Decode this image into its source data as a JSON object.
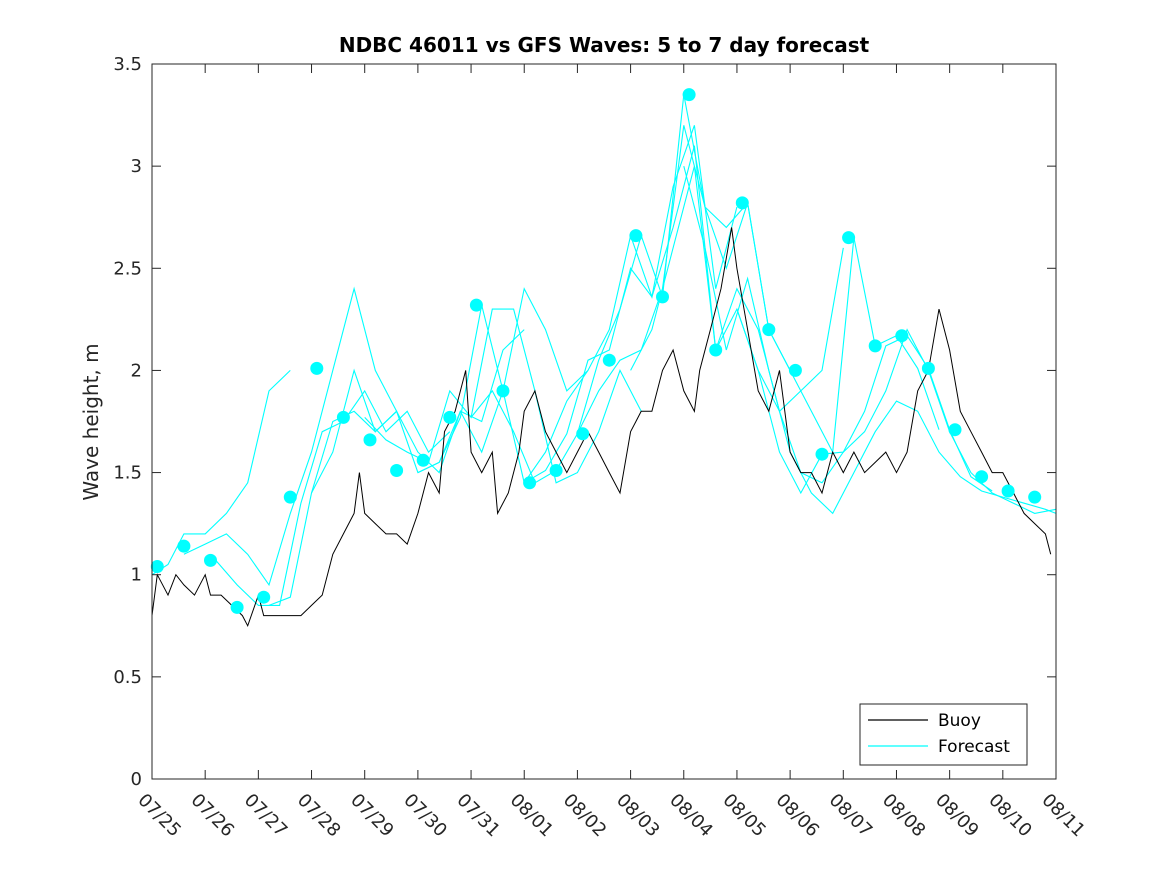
{
  "chart_data": {
    "type": "line",
    "title": "NDBC 46011 vs GFS Waves: 5 to 7 day forecast",
    "xlabel": "",
    "ylabel": "Wave height, m",
    "xlim": [
      "07/25",
      "08/11"
    ],
    "ylim": [
      0,
      3.5
    ],
    "x_ticks": [
      "07/25",
      "07/26",
      "07/27",
      "07/28",
      "07/29",
      "07/30",
      "07/31",
      "08/01",
      "08/02",
      "08/03",
      "08/04",
      "08/05",
      "08/06",
      "08/07",
      "08/08",
      "08/09",
      "08/10",
      "08/11"
    ],
    "y_ticks": [
      "0",
      "0.5",
      "1",
      "1.5",
      "2",
      "2.5",
      "3",
      "3.5"
    ],
    "grid": false,
    "legend_position": "bottom-right",
    "series": [
      {
        "name": "Buoy",
        "color": "#000000",
        "x": [
          0,
          0.1,
          0.3,
          0.45,
          0.6,
          0.8,
          1.0,
          1.1,
          1.3,
          1.5,
          1.7,
          1.8,
          2.0,
          2.1,
          2.3,
          2.5,
          2.6,
          2.8,
          3.0,
          3.2,
          3.4,
          3.6,
          3.8,
          3.9,
          4.0,
          4.2,
          4.4,
          4.6,
          4.8,
          5.0,
          5.2,
          5.4,
          5.5,
          5.7,
          5.9,
          6.0,
          6.2,
          6.4,
          6.5,
          6.7,
          6.9,
          7.0,
          7.2,
          7.4,
          7.6,
          7.8,
          8.0,
          8.2,
          8.4,
          8.6,
          8.8,
          9.0,
          9.2,
          9.4,
          9.6,
          9.8,
          10.0,
          10.2,
          10.3,
          10.5,
          10.7,
          10.9,
          11.0,
          11.2,
          11.4,
          11.6,
          11.8,
          12.0,
          12.2,
          12.4,
          12.6,
          12.8,
          13.0,
          13.2,
          13.4,
          13.6,
          13.8,
          14.0,
          14.2,
          14.4,
          14.6,
          14.8,
          15.0,
          15.2,
          15.4,
          15.6,
          15.8,
          16.0,
          16.2,
          16.4,
          16.6,
          16.8,
          16.9
        ],
        "y": [
          0.8,
          1.0,
          0.9,
          1.0,
          0.95,
          0.9,
          1.0,
          0.9,
          0.9,
          0.85,
          0.8,
          0.75,
          0.9,
          0.8,
          0.8,
          0.8,
          0.8,
          0.8,
          0.85,
          0.9,
          1.1,
          1.2,
          1.3,
          1.5,
          1.3,
          1.25,
          1.2,
          1.2,
          1.15,
          1.3,
          1.5,
          1.4,
          1.7,
          1.8,
          2.0,
          1.6,
          1.5,
          1.6,
          1.3,
          1.4,
          1.6,
          1.8,
          1.9,
          1.7,
          1.6,
          1.5,
          1.6,
          1.7,
          1.6,
          1.5,
          1.4,
          1.7,
          1.8,
          1.8,
          2.0,
          2.1,
          1.9,
          1.8,
          2.0,
          2.2,
          2.4,
          2.7,
          2.5,
          2.2,
          1.9,
          1.8,
          2.0,
          1.6,
          1.5,
          1.5,
          1.4,
          1.6,
          1.5,
          1.6,
          1.5,
          1.55,
          1.6,
          1.5,
          1.6,
          1.9,
          2.0,
          2.3,
          2.1,
          1.8,
          1.7,
          1.6,
          1.5,
          1.5,
          1.4,
          1.3,
          1.25,
          1.2,
          1.1
        ]
      },
      {
        "name": "Forecast",
        "color": "#00ffff",
        "runs": [
          {
            "x": [
              0,
              0.3,
              0.6,
              1.0,
              1.4,
              1.8,
              2.2,
              2.6
            ],
            "y": [
              1.0,
              1.05,
              1.2,
              1.2,
              1.3,
              1.45,
              1.9,
              2.0
            ]
          },
          {
            "x": [
              0.6,
              1.0,
              1.4,
              1.8,
              2.2,
              2.6,
              3.0,
              3.4,
              3.8,
              4.2,
              4.6
            ],
            "y": [
              1.1,
              1.15,
              1.2,
              1.1,
              0.95,
              1.3,
              1.6,
              2.0,
              2.4,
              2.0,
              1.8
            ]
          },
          {
            "x": [
              1.2,
              1.6,
              2.0,
              2.4,
              2.8,
              3.2,
              3.6,
              4.0,
              4.4,
              4.8,
              5.2,
              5.6
            ],
            "y": [
              1.07,
              0.95,
              0.85,
              0.85,
              1.35,
              1.7,
              1.75,
              1.9,
              1.7,
              1.8,
              1.6,
              1.7
            ]
          },
          {
            "x": [
              2.2,
              2.6,
              3.0,
              3.4,
              3.8,
              4.2,
              4.6,
              5.0,
              5.4,
              5.8,
              6.2,
              6.6,
              7.0
            ],
            "y": [
              0.85,
              0.89,
              1.4,
              1.75,
              1.8,
              1.7,
              1.8,
              1.5,
              1.55,
              1.8,
              1.75,
              2.1,
              2.2
            ]
          },
          {
            "x": [
              3.0,
              3.4,
              3.8,
              4.2,
              4.6,
              5.0,
              5.4,
              5.8,
              6.2,
              6.6,
              7.0,
              7.4,
              7.8,
              8.2
            ],
            "y": [
              1.4,
              1.6,
              2.0,
              1.7,
              1.8,
              1.6,
              1.5,
              1.8,
              1.6,
              1.9,
              2.4,
              2.2,
              1.9,
              2.0
            ]
          },
          {
            "x": [
              4.0,
              4.4,
              4.8,
              5.2,
              5.6,
              6.0,
              6.4,
              6.8,
              7.2,
              7.6,
              8.0,
              8.4,
              8.8,
              9.2
            ],
            "y": [
              1.77,
              1.66,
              1.6,
              1.55,
              1.9,
              1.77,
              2.3,
              2.3,
              1.9,
              1.45,
              1.5,
              1.7,
              2.0,
              1.8
            ]
          },
          {
            "x": [
              5.0,
              5.4,
              5.8,
              6.2,
              6.6,
              7.0,
              7.4,
              7.8,
              8.2,
              8.6,
              9.0,
              9.4,
              9.8,
              10.2,
              10.6,
              11.0
            ],
            "y": [
              1.5,
              1.55,
              1.77,
              2.32,
              1.9,
              1.45,
              1.6,
              1.85,
              2.0,
              2.2,
              2.66,
              2.36,
              2.9,
              3.2,
              2.4,
              2.8
            ]
          },
          {
            "x": [
              6.0,
              6.4,
              6.8,
              7.2,
              7.6,
              8.0,
              8.4,
              8.8,
              9.2,
              9.6,
              10.0,
              10.4,
              10.8,
              11.2,
              11.6,
              12.0
            ],
            "y": [
              1.77,
              1.9,
              1.7,
              1.45,
              1.51,
              1.69,
              2.05,
              2.3,
              2.66,
              2.36,
              3.35,
              2.8,
              2.5,
              2.82,
              2.2,
              2.0
            ]
          },
          {
            "x": [
              7.0,
              7.4,
              7.8,
              8.2,
              8.6,
              9.0,
              9.4,
              9.8,
              10.2,
              10.6,
              11.0,
              11.4,
              11.8,
              12.2,
              12.6,
              13.0
            ],
            "y": [
              1.45,
              1.51,
              1.69,
              2.05,
              2.1,
              2.5,
              2.36,
              2.7,
              3.1,
              2.1,
              2.4,
              2.2,
              1.8,
              1.9,
              2.0,
              2.6
            ]
          },
          {
            "x": [
              8.0,
              8.4,
              8.8,
              9.2,
              9.6,
              10.0,
              10.4,
              10.8,
              11.2,
              11.6,
              12.0,
              12.4,
              12.8,
              13.2,
              13.6,
              14.0,
              14.4,
              14.8
            ],
            "y": [
              1.69,
              1.9,
              2.05,
              2.1,
              2.4,
              3.2,
              2.8,
              2.7,
              2.82,
              2.2,
              2.0,
              1.8,
              1.6,
              2.65,
              2.12,
              2.17,
              2.01,
              1.71
            ]
          },
          {
            "x": [
              9.0,
              9.4,
              9.8,
              10.2,
              10.6,
              11.0,
              11.4,
              11.8,
              12.2,
              12.6,
              13.0,
              13.4,
              13.8,
              14.2,
              14.6,
              15.0,
              15.4,
              15.8
            ],
            "y": [
              2.0,
              2.2,
              2.6,
              3.0,
              2.1,
              2.3,
              2.0,
              1.6,
              1.4,
              1.59,
              1.6,
              1.8,
              2.12,
              2.17,
              2.01,
              1.71,
              1.48,
              1.41
            ]
          },
          {
            "x": [
              10.0,
              10.4,
              10.8,
              11.2,
              11.6,
              12.0,
              12.4,
              12.8,
              13.2,
              13.6,
              14.0,
              14.4,
              14.8,
              15.2,
              15.6,
              16.0,
              16.4,
              16.8,
              17.0
            ],
            "y": [
              3.0,
              2.6,
              2.1,
              2.45,
              2.0,
              1.6,
              1.4,
              1.3,
              1.5,
              1.7,
              1.85,
              1.8,
              1.6,
              1.48,
              1.41,
              1.38,
              1.35,
              1.32,
              1.3
            ]
          },
          {
            "x": [
              11.0,
              11.4,
              11.8,
              12.2,
              12.6,
              13.0,
              13.4,
              13.8,
              14.2,
              14.6,
              15.0,
              15.4,
              15.8,
              16.2,
              16.6,
              17.0
            ],
            "y": [
              2.3,
              2.0,
              1.8,
              1.5,
              1.45,
              1.6,
              1.7,
              1.9,
              2.2,
              2.0,
              1.7,
              1.5,
              1.4,
              1.35,
              1.3,
              1.32
            ]
          }
        ]
      }
    ],
    "markers": {
      "name": "Forecast",
      "color": "#00ffff",
      "x": [
        0.1,
        0.6,
        1.1,
        1.6,
        2.1,
        2.6,
        3.1,
        3.6,
        4.1,
        4.6,
        5.1,
        5.6,
        6.1,
        6.6,
        7.1,
        7.6,
        8.1,
        8.6,
        9.1,
        9.6,
        10.1,
        10.6,
        11.1,
        11.6,
        12.1,
        12.6,
        13.1,
        13.6,
        14.1,
        14.6,
        15.1,
        15.6,
        16.1,
        16.6
      ],
      "y": [
        1.04,
        1.14,
        1.07,
        0.84,
        0.89,
        1.38,
        2.01,
        1.77,
        1.66,
        1.51,
        1.56,
        1.77,
        2.32,
        1.9,
        1.45,
        1.51,
        1.69,
        2.05,
        2.66,
        2.36,
        3.35,
        2.1,
        2.82,
        2.2,
        2.0,
        1.59,
        2.65,
        2.12,
        2.17,
        2.01,
        1.71,
        1.48,
        1.41,
        1.38
      ]
    }
  }
}
